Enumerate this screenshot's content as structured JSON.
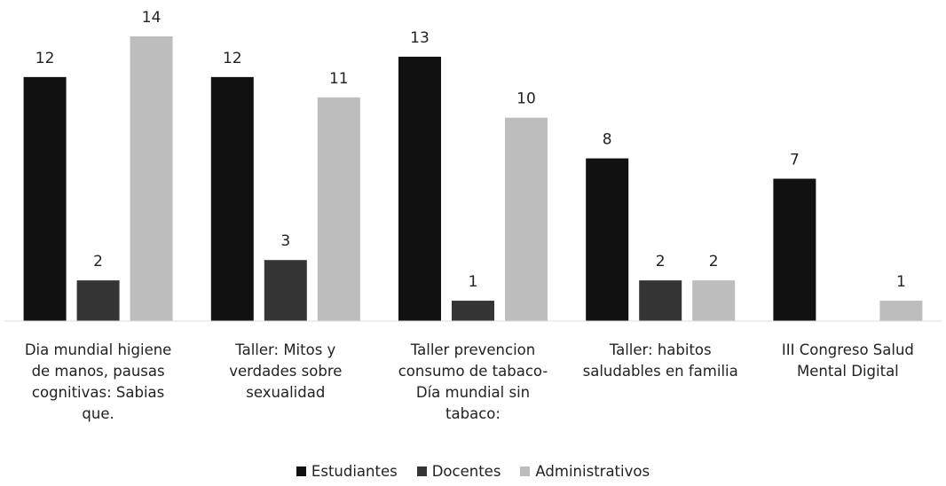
{
  "chart_data": {
    "type": "bar",
    "categories": [
      "Dia mundial higiene de manos, pausas cognitivas: Sabias que.",
      "Taller: Mitos y verdades sobre sexualidad",
      "Taller prevencion consumo de tabaco- Día mundial sin tabaco:",
      "Taller: habitos saludables en familia",
      "III Congreso Salud Mental Digital"
    ],
    "series": [
      {
        "name": "Estudiantes",
        "color": "#111111",
        "values": [
          12,
          12,
          13,
          8,
          7
        ]
      },
      {
        "name": "Docentes",
        "color": "#353535",
        "values": [
          2,
          3,
          1,
          2,
          null
        ]
      },
      {
        "name": "Administrativos",
        "color": "#bdbdbd",
        "values": [
          14,
          11,
          10,
          2,
          1
        ]
      }
    ],
    "legend": "bottom"
  }
}
